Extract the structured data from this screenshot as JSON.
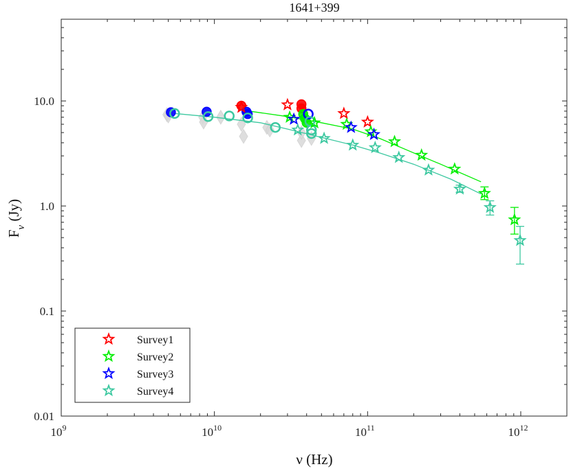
{
  "chart_data": {
    "type": "scatter",
    "title": "1641+399",
    "xlabel": "ν (Hz)",
    "ylabel": "F_ν (Jy)",
    "xscale": "log",
    "yscale": "log",
    "xlim": [
      1000000000.0,
      2000000000000.0
    ],
    "ylim": [
      0.01,
      60
    ],
    "x_ticks": [
      {
        "value": 1000000000.0,
        "base": "10",
        "exp": "9"
      },
      {
        "value": 10000000000.0,
        "base": "10",
        "exp": "10"
      },
      {
        "value": 100000000000.0,
        "base": "10",
        "exp": "11"
      },
      {
        "value": 1000000000000.0,
        "base": "10",
        "exp": "12"
      }
    ],
    "y_ticks": [
      {
        "value": 0.01,
        "label": "0.01"
      },
      {
        "value": 0.1,
        "label": "0.1"
      },
      {
        "value": 1,
        "label": "1.0"
      },
      {
        "value": 10,
        "label": "10.0"
      }
    ],
    "legend_position": "bottom-left",
    "legend": [
      {
        "name": "Survey1",
        "color": "#ff0000"
      },
      {
        "name": "Survey2",
        "color": "#00ee00"
      },
      {
        "name": "Survey3",
        "color": "#0000ff"
      },
      {
        "name": "Survey4",
        "color": "#3cc8a0"
      }
    ],
    "background_points": [
      {
        "x": 4900000000.0,
        "y": 7.4
      },
      {
        "x": 5000000000.0,
        "y": 7.2
      },
      {
        "x": 8400000000.0,
        "y": 7.0
      },
      {
        "x": 8500000000.0,
        "y": 6.3
      },
      {
        "x": 11000000000.0,
        "y": 7.0
      },
      {
        "x": 15000000000.0,
        "y": 6.0
      },
      {
        "x": 15500000000.0,
        "y": 4.6
      },
      {
        "x": 22000000000.0,
        "y": 5.6
      },
      {
        "x": 23000000000.0,
        "y": 5.3
      },
      {
        "x": 37000000000.0,
        "y": 4.2
      },
      {
        "x": 37000000000.0,
        "y": 5.0
      },
      {
        "x": 43000000000.0,
        "y": 4.4
      }
    ],
    "survey_points": [
      {
        "series": "Survey1",
        "marker": "circle",
        "filled": true,
        "x": 15000000000.0,
        "y": 9.0
      },
      {
        "series": "Survey1",
        "marker": "circle",
        "filled": true,
        "x": 37000000000.0,
        "y": 9.3
      },
      {
        "series": "Survey1",
        "marker": "circle",
        "filled": true,
        "x": 37000000000.0,
        "y": 8.5
      },
      {
        "series": "Survey2",
        "marker": "circle",
        "filled": true,
        "x": 38000000000.0,
        "y": 7.5
      },
      {
        "series": "Survey2",
        "marker": "circle",
        "filled": true,
        "x": 39000000000.0,
        "y": 6.8
      },
      {
        "series": "Survey2",
        "marker": "circle",
        "filled": true,
        "x": 40000000000.0,
        "y": 6.2
      },
      {
        "series": "Survey3",
        "marker": "circle",
        "filled": true,
        "x": 5200000000.0,
        "y": 7.8
      },
      {
        "series": "Survey3",
        "marker": "circle",
        "filled": true,
        "x": 8900000000.0,
        "y": 7.9
      },
      {
        "series": "Survey3",
        "marker": "circle",
        "filled": true,
        "x": 16200000000.0,
        "y": 7.9
      },
      {
        "series": "Survey3",
        "marker": "circle",
        "filled": true,
        "x": 16500000000.0,
        "y": 7.5
      },
      {
        "series": "Survey3",
        "marker": "circle",
        "filled": false,
        "x": 41000000000.0,
        "y": 7.5
      },
      {
        "series": "Survey4",
        "marker": "circle",
        "filled": false,
        "x": 5500000000.0,
        "y": 7.6
      },
      {
        "series": "Survey4",
        "marker": "circle",
        "filled": false,
        "x": 9100000000.0,
        "y": 7.1
      },
      {
        "series": "Survey4",
        "marker": "circle",
        "filled": false,
        "x": 12500000000.0,
        "y": 7.2
      },
      {
        "series": "Survey4",
        "marker": "circle",
        "filled": false,
        "x": 16500000000.0,
        "y": 6.9
      },
      {
        "series": "Survey4",
        "marker": "circle",
        "filled": false,
        "x": 25000000000.0,
        "y": 5.6
      },
      {
        "series": "Survey4",
        "marker": "circle",
        "filled": false,
        "x": 42000000000.0,
        "y": 6.4
      },
      {
        "series": "Survey4",
        "marker": "circle",
        "filled": false,
        "x": 43000000000.0,
        "y": 5.3
      },
      {
        "series": "Survey4",
        "marker": "circle",
        "filled": false,
        "x": 43000000000.0,
        "y": 4.9
      },
      {
        "series": "Survey1",
        "marker": "star",
        "filled": false,
        "x": 15000000000.0,
        "y": 8.7
      },
      {
        "series": "Survey1",
        "marker": "star",
        "filled": false,
        "x": 30000000000.0,
        "y": 9.2
      },
      {
        "series": "Survey1",
        "marker": "star",
        "filled": false,
        "x": 70000000000.0,
        "y": 7.6
      },
      {
        "series": "Survey1",
        "marker": "star",
        "filled": false,
        "x": 100000000000.0,
        "y": 6.3
      },
      {
        "series": "Survey2",
        "marker": "star",
        "filled": false,
        "x": 31000000000.0,
        "y": 7.0
      },
      {
        "series": "Survey2",
        "marker": "star",
        "filled": false,
        "x": 45000000000.0,
        "y": 6.2
      },
      {
        "series": "Survey2",
        "marker": "star",
        "filled": false,
        "x": 73000000000.0,
        "y": 6.0
      },
      {
        "series": "Survey2",
        "marker": "star",
        "filled": false,
        "x": 105000000000.0,
        "y": 5.1
      },
      {
        "series": "Survey2",
        "marker": "star",
        "filled": false,
        "x": 150000000000.0,
        "y": 4.1
      },
      {
        "series": "Survey2",
        "marker": "star",
        "filled": false,
        "x": 225000000000.0,
        "y": 3.05
      },
      {
        "series": "Survey2",
        "marker": "star",
        "filled": false,
        "x": 370000000000.0,
        "y": 2.25
      },
      {
        "series": "Survey2",
        "marker": "star",
        "filled": false,
        "x": 580000000000.0,
        "y": 1.32,
        "err": [
          1.15,
          1.52
        ]
      },
      {
        "series": "Survey2",
        "marker": "star",
        "filled": false,
        "x": 910000000000.0,
        "y": 0.74,
        "err": [
          0.54,
          0.97
        ]
      },
      {
        "series": "Survey3",
        "marker": "star",
        "filled": false,
        "x": 33000000000.0,
        "y": 6.7
      },
      {
        "series": "Survey3",
        "marker": "star",
        "filled": false,
        "x": 78000000000.0,
        "y": 5.6
      },
      {
        "series": "Survey3",
        "marker": "star",
        "filled": false,
        "x": 110000000000.0,
        "y": 4.8
      },
      {
        "series": "Survey4",
        "marker": "star",
        "filled": false,
        "x": 35000000000.0,
        "y": 5.3
      },
      {
        "series": "Survey4",
        "marker": "star",
        "filled": false,
        "x": 52000000000.0,
        "y": 4.4
      },
      {
        "series": "Survey4",
        "marker": "star",
        "filled": false,
        "x": 80000000000.0,
        "y": 3.8
      },
      {
        "series": "Survey4",
        "marker": "star",
        "filled": false,
        "x": 112000000000.0,
        "y": 3.6
      },
      {
        "series": "Survey4",
        "marker": "star",
        "filled": false,
        "x": 160000000000.0,
        "y": 2.9
      },
      {
        "series": "Survey4",
        "marker": "star",
        "filled": false,
        "x": 250000000000.0,
        "y": 2.2
      },
      {
        "series": "Survey4",
        "marker": "star",
        "filled": false,
        "x": 400000000000.0,
        "y": 1.45,
        "err": [
          1.35,
          1.58
        ]
      },
      {
        "series": "Survey4",
        "marker": "star",
        "filled": false,
        "x": 630000000000.0,
        "y": 0.97,
        "err": [
          0.82,
          1.12
        ]
      },
      {
        "series": "Survey4",
        "marker": "star",
        "filled": false,
        "x": 990000000000.0,
        "y": 0.47,
        "err": [
          0.28,
          0.64
        ]
      }
    ],
    "fit_lines": [
      {
        "series": "Survey2",
        "x": [
          15000000000.0,
          30000000000.0,
          50000000000.0,
          80000000000.0,
          120000000000.0,
          200000000000.0,
          300000000000.0,
          550000000000.0
        ],
        "y": [
          8.2,
          7.1,
          6.2,
          5.4,
          4.4,
          3.2,
          2.5,
          1.7
        ]
      },
      {
        "series": "Survey4",
        "x": [
          5500000000.0,
          10000000000.0,
          20000000000.0,
          30000000000.0,
          50000000000.0,
          80000000000.0,
          120000000000.0,
          200000000000.0,
          350000000000.0,
          550000000000.0
        ],
        "y": [
          7.6,
          7.0,
          6.2,
          5.4,
          4.5,
          3.8,
          3.2,
          2.5,
          1.8,
          1.3
        ]
      }
    ]
  }
}
